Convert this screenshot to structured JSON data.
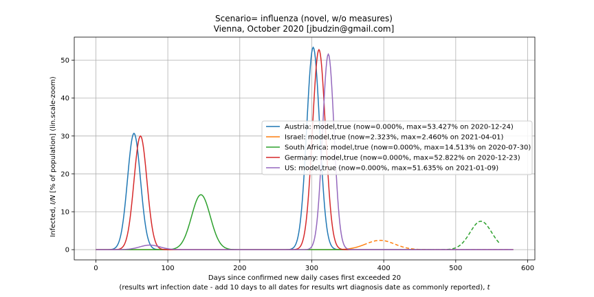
{
  "chart_data": {
    "type": "line",
    "title": "Scenario= influenza (novel, w/o measures)",
    "subtitle": "Vienna, October 2020 [jbudzin@gmail.com]",
    "xlabel": "Days since confirmed new daily cases first exceeded 20",
    "xlabel2": "(results wrt infection date - add 10 days to all dates for results wrt diagnosis date as commonly reported),",
    "xlabel2_var": "t",
    "ylabel_prefix": "Infected,",
    "ylabel_var": "I/N",
    "ylabel_suffix": "[% of population] (lin.scale-zoom)",
    "xlim": [
      -30,
      610
    ],
    "ylim": [
      -2.7,
      56.1
    ],
    "xticks": [
      0,
      100,
      200,
      300,
      400,
      500,
      600
    ],
    "yticks": [
      0,
      10,
      20,
      30,
      40,
      50
    ],
    "grid": true,
    "legend_position": "center-right",
    "series": [
      {
        "name": "Austria: model,true (now=0.000%, max=53.427% on 2020-12-24)",
        "color": "#1f77b4",
        "style": "solid",
        "x_range": [
          0,
          580
        ],
        "peaks": [
          {
            "center": 53,
            "height": 30.7,
            "width": 9
          },
          {
            "center": 302,
            "height": 53.4,
            "width": 9
          }
        ]
      },
      {
        "name": "Israel: model,true (now=2.323%, max=2.460% on 2021-04-01)",
        "color": "#ff7f0e",
        "style": "dashed-after-now",
        "now_x": 372,
        "x_range": [
          0,
          580
        ],
        "peaks": [
          {
            "center": 395,
            "height": 2.46,
            "width": 20
          }
        ]
      },
      {
        "name": "South Africa: model,true (now=0.000%, max=14.513% on 2020-07-30)",
        "color": "#2ca02c",
        "style": "dashed-after-now",
        "now_x": 465,
        "x_range": [
          0,
          560
        ],
        "peaks": [
          {
            "center": 146,
            "height": 14.5,
            "width": 13
          },
          {
            "center": 535,
            "height": 7.5,
            "width": 15
          }
        ]
      },
      {
        "name": "Germany: model,true (now=0.000%, max=52.822% on 2020-12-23)",
        "color": "#d62728",
        "style": "solid",
        "x_range": [
          0,
          580
        ],
        "peaks": [
          {
            "center": 62,
            "height": 30.0,
            "width": 9
          },
          {
            "center": 310,
            "height": 52.8,
            "width": 9
          }
        ]
      },
      {
        "name": "US: model,true (now=0.000%, max=51.635% on 2021-01-09)",
        "color": "#9467bd",
        "style": "solid",
        "x_range": [
          0,
          580
        ],
        "peaks": [
          {
            "center": 75,
            "height": 1.2,
            "width": 14
          },
          {
            "center": 323,
            "height": 51.6,
            "width": 8
          }
        ]
      }
    ]
  }
}
